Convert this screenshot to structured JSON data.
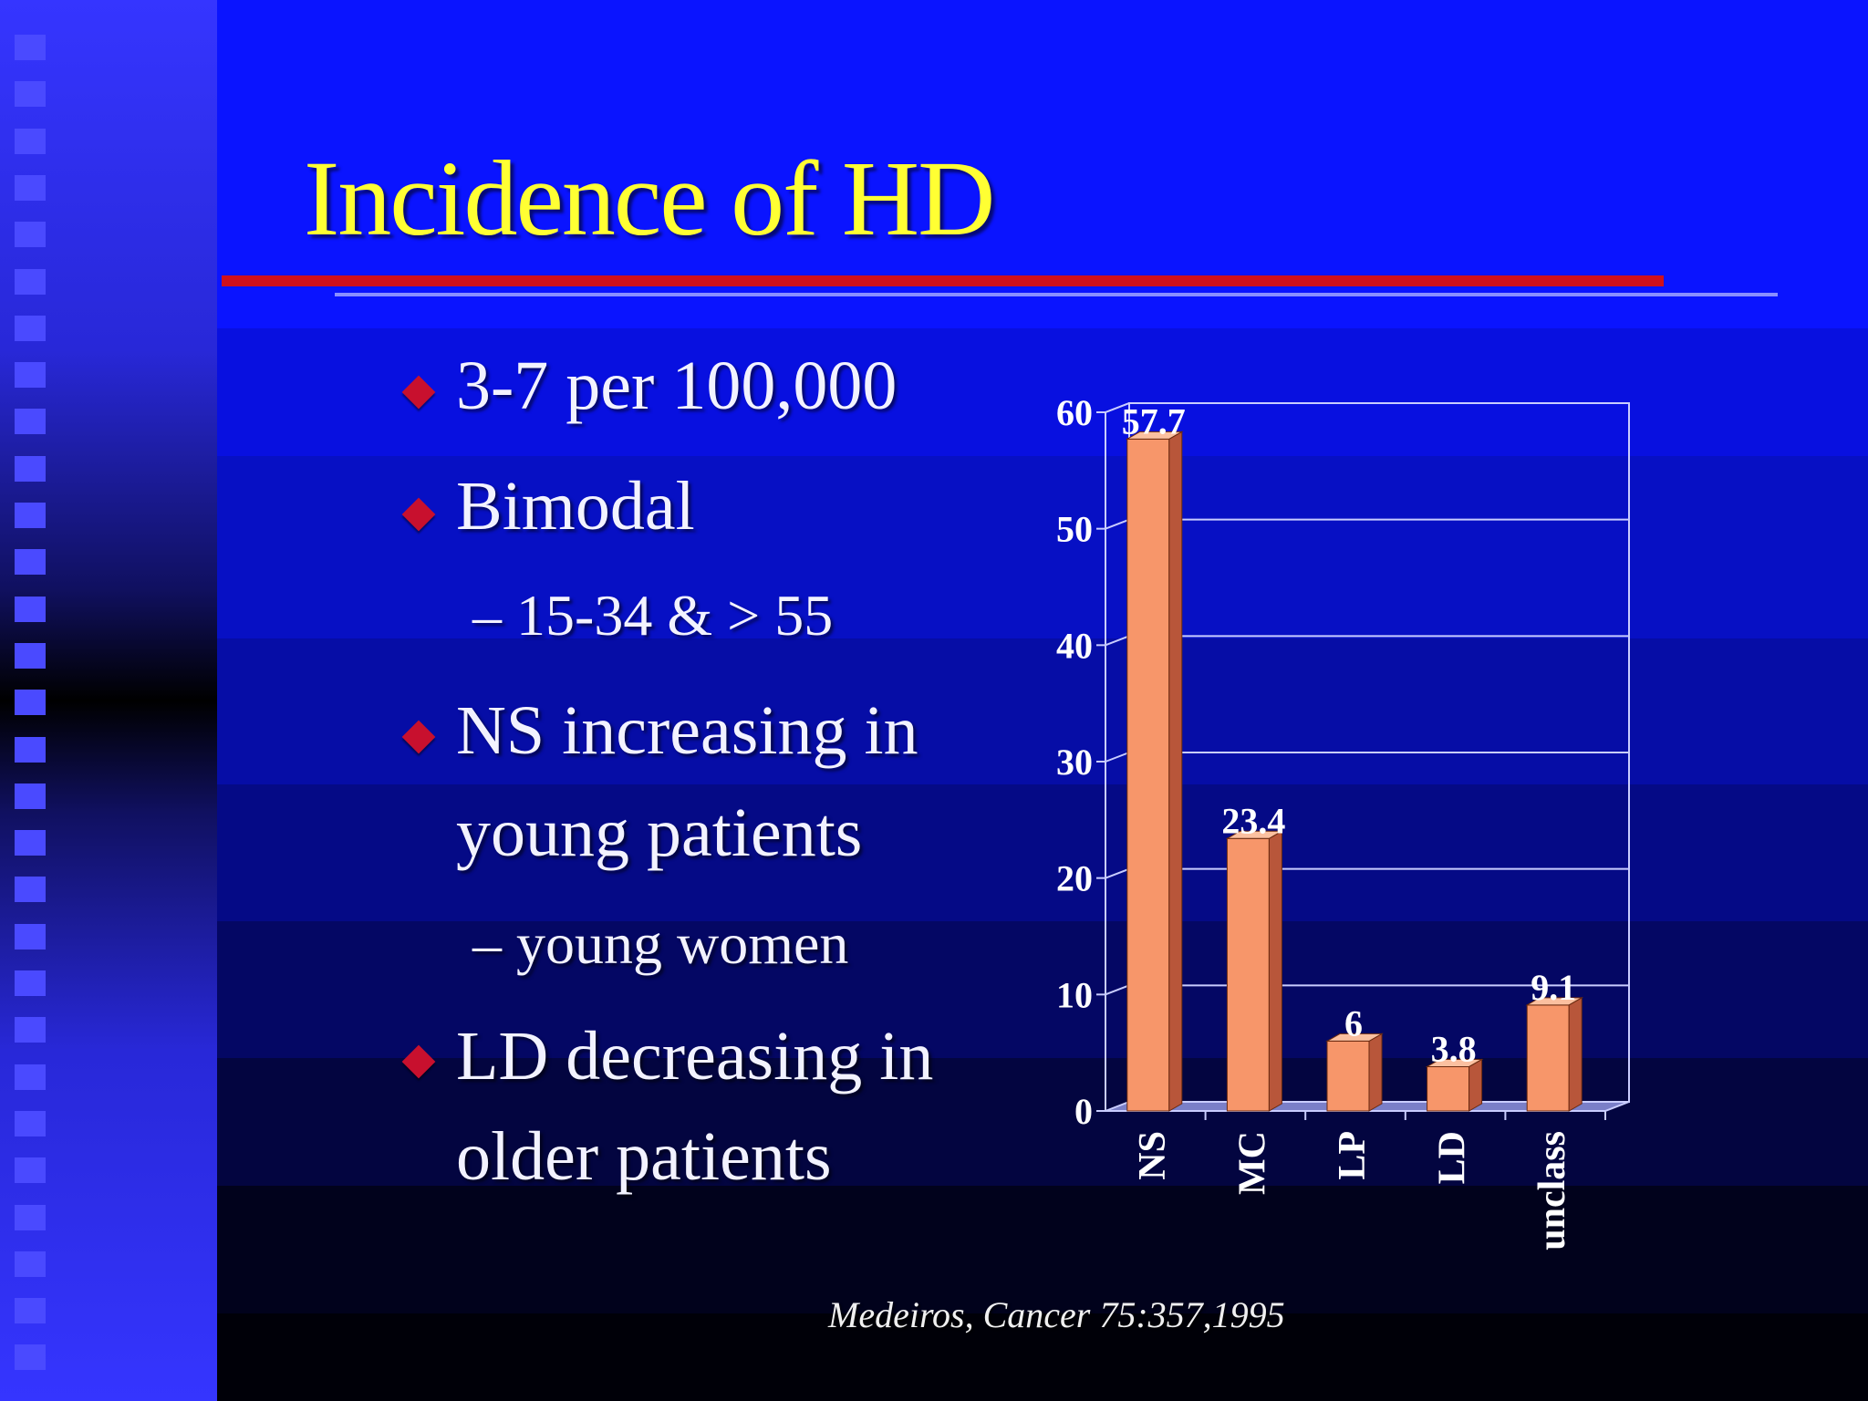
{
  "slide": {
    "title": "Incidence of HD",
    "citation": "Medeiros, Cancer 75:357,1995"
  },
  "bullets": [
    {
      "lines": [
        "3-7 per 100,000"
      ]
    },
    {
      "lines": [
        "Bimodal"
      ]
    },
    {
      "lines": [
        "NS increasing in",
        "young patients"
      ]
    },
    {
      "lines": [
        "LD decreasing in",
        "older patients"
      ]
    }
  ],
  "subbullets": [
    "– 15-34 & > 55",
    "– young women"
  ],
  "colors": {
    "title": "#ffff33",
    "bar_front": "#f7966a",
    "bar_side": "#b8563a",
    "bar_top": "#fbc0a0",
    "bullet": "#c8102e"
  },
  "chart_data": {
    "type": "bar",
    "categories": [
      "NS",
      "MC",
      "LP",
      "LD",
      "unclass"
    ],
    "values": [
      57.7,
      23.4,
      6,
      3.8,
      9.1
    ],
    "value_labels": [
      "57.7",
      "23.4",
      "6",
      "3.8",
      "9.1"
    ],
    "ylim": [
      0,
      60
    ],
    "yticks": [
      "0",
      "10",
      "20",
      "30",
      "40",
      "50",
      "60"
    ],
    "grid": true,
    "title": "",
    "xlabel": "",
    "ylabel": ""
  }
}
